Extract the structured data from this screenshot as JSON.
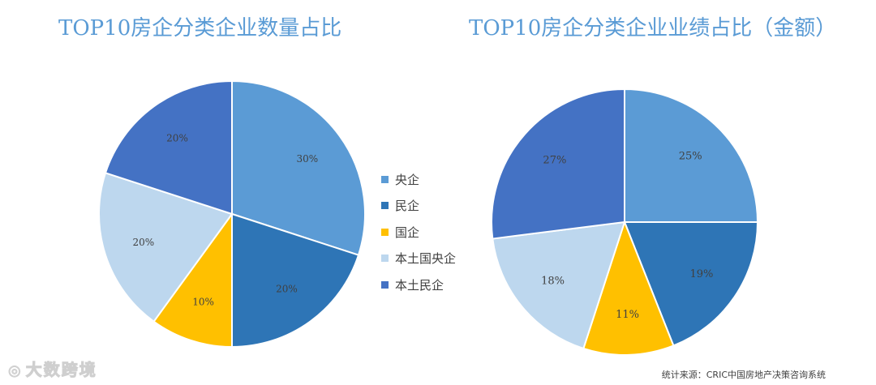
{
  "colors": {
    "title": "#5a9bd5",
    "series": [
      "#5b9bd5",
      "#2e75b6",
      "#ffc000",
      "#bdd7ee",
      "#4472c4"
    ]
  },
  "legend": {
    "items": [
      "央企",
      "民企",
      "国企",
      "本土国央企",
      "本土民企"
    ]
  },
  "chart_data": [
    {
      "type": "pie",
      "title": "TOP10房企分类企业数量占比",
      "categories": [
        "央企",
        "民企",
        "国企",
        "本土国央企",
        "本土民企"
      ],
      "values": [
        30,
        20,
        10,
        20,
        20
      ],
      "labels": [
        "30%",
        "20%",
        "10%",
        "20%",
        "20%"
      ],
      "legend_position": "right"
    },
    {
      "type": "pie",
      "title": "TOP10房企分类企业业绩占比（金额）",
      "categories": [
        "央企",
        "民企",
        "国企",
        "本土国央企",
        "本土民企"
      ],
      "values": [
        25,
        19,
        11,
        18,
        27
      ],
      "labels": [
        "25%",
        "19%",
        "11%",
        "18%",
        "27%"
      ]
    }
  ],
  "watermark": "大数跨境",
  "source": "统计来源：CRIC中国房地产决策咨询系统"
}
